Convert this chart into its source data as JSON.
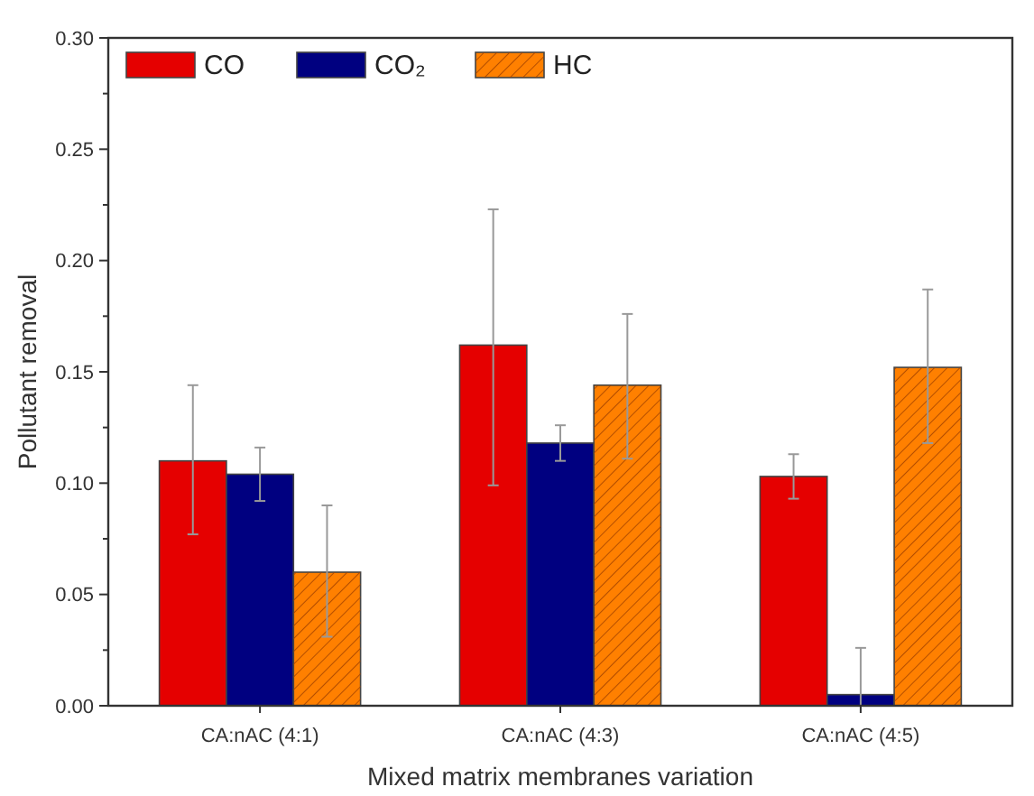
{
  "chart_data": {
    "type": "bar",
    "xlabel": "Mixed matrix membranes variation",
    "ylabel": "Pollutant removal",
    "categories": [
      "CA:nAC (4:1)",
      "CA:nAC (4:3)",
      "CA:nAC (4:5)"
    ],
    "series": [
      {
        "name": "CO",
        "color": "#e50000",
        "values": [
          0.11,
          0.162,
          0.103
        ],
        "errors": [
          [
            0.077,
            0.144
          ],
          [
            0.099,
            0.223
          ],
          [
            0.093,
            0.113
          ]
        ]
      },
      {
        "name": "CO₂",
        "color": "#000080",
        "values": [
          0.104,
          0.118,
          0.005
        ],
        "errors": [
          [
            0.092,
            0.116
          ],
          [
            0.11,
            0.126
          ],
          [
            0,
            0.026
          ]
        ]
      },
      {
        "name": "HC",
        "color": "#ff8000",
        "values": [
          0.06,
          0.144,
          0.152
        ],
        "errors": [
          [
            0.031,
            0.09
          ],
          [
            0.111,
            0.176
          ],
          [
            0.118,
            0.187
          ]
        ]
      }
    ],
    "ylim": [
      0,
      0.3
    ],
    "yticks": [
      {
        "value": 0,
        "label": "0.00"
      },
      {
        "value": 0.025,
        "label": null
      },
      {
        "value": 0.05,
        "label": "0.05"
      },
      {
        "value": 0.075,
        "label": null
      },
      {
        "value": 0.1,
        "label": "0.10"
      },
      {
        "value": 0.125,
        "label": null
      },
      {
        "value": 0.15,
        "label": "0.15"
      },
      {
        "value": 0.175,
        "label": null
      },
      {
        "value": 0.2,
        "label": "0.20"
      },
      {
        "value": 0.225,
        "label": null
      },
      {
        "value": 0.25,
        "label": "0.25"
      },
      {
        "value": 0.275,
        "label": null
      },
      {
        "value": 0.3,
        "label": "0.30"
      }
    ],
    "legend": "top left",
    "grid": false
  }
}
